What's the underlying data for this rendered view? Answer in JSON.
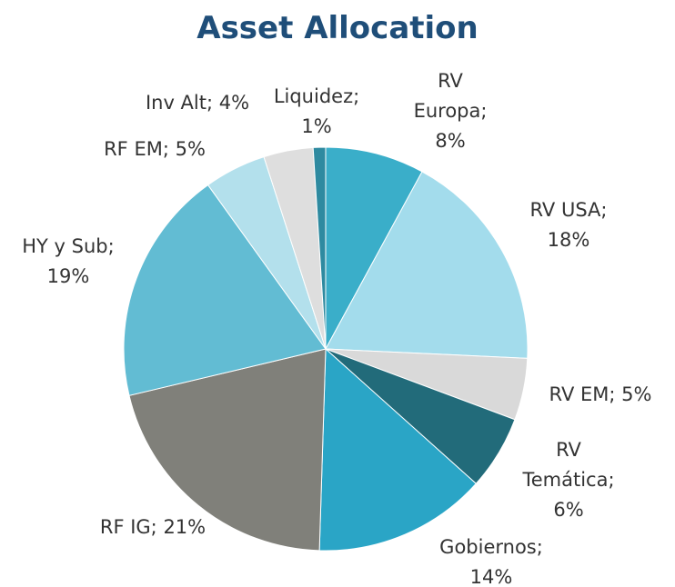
{
  "chart_data": {
    "type": "pie",
    "title": "Asset Allocation",
    "values": [
      8,
      18,
      5,
      6,
      14,
      21,
      19,
      5,
      4,
      1
    ],
    "value_labels": [
      "RV Europa; 8%",
      "RV USA; 18%",
      "RV EM; 5%",
      "RV Temática; 6%",
      "Gobiernos; 14%",
      "RF IG; 21%",
      "HY y Sub; 19%",
      "RF EM; 5%",
      "Inv Alt; 4%",
      "Liquidez; 1%"
    ],
    "colors": [
      "#3aaec9",
      "#a3dcec",
      "#d9d9d9",
      "#226b7a",
      "#2aa5c6",
      "#80807a",
      "#62bcd3",
      "#b3e0ec",
      "#dedede",
      "#2e8aa0"
    ]
  }
}
